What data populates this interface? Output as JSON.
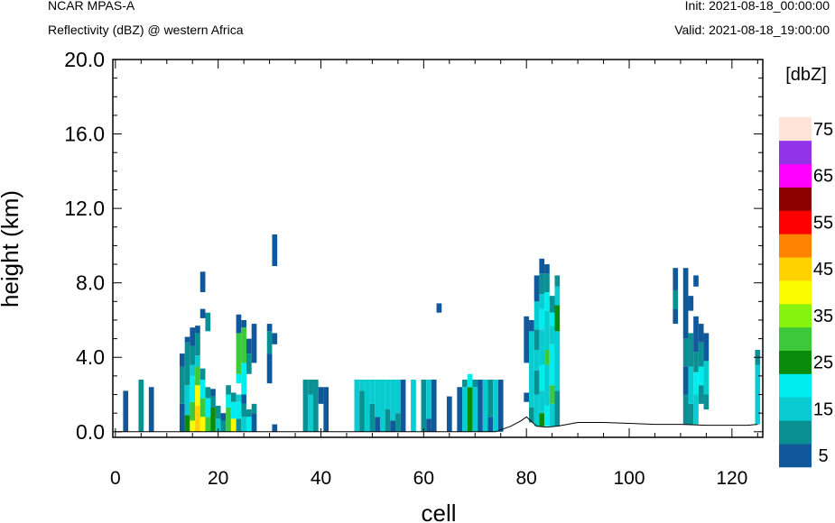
{
  "header": {
    "model": "NCAR MPAS-A",
    "field": "Reflectivity (dBZ) @ western Africa",
    "init": "Init: 2021-08-18_00:00:00",
    "valid": "Valid: 2021-08-18_19:00:00"
  },
  "chart_data": {
    "type": "heatmap",
    "title": "Reflectivity (dBZ) @ western Africa",
    "xlabel": "cell",
    "ylabel": "height (km)",
    "xlim": [
      -0.5,
      126
    ],
    "ylim": [
      -0.3,
      20.0
    ],
    "x_ticks": [
      0,
      20,
      40,
      60,
      80,
      100,
      120
    ],
    "y_ticks": [
      0.0,
      4.0,
      8.0,
      12.0,
      16.0,
      20.0
    ],
    "y_tick_labels": [
      "0.0",
      "4.0",
      "8.0",
      "12.0",
      "16.0",
      "20.0"
    ],
    "colorbar": {
      "unit": "[dbZ]",
      "levels": [
        5,
        10,
        15,
        20,
        25,
        30,
        35,
        40,
        45,
        50,
        55,
        60,
        65,
        70,
        75,
        80
      ],
      "labels": [
        5,
        15,
        25,
        35,
        45,
        55,
        65,
        75
      ],
      "colors": [
        "#11589b",
        "#0a9093",
        "#08ccd0",
        "#00ecee",
        "#0a8b0a",
        "#3cca3c",
        "#86f20e",
        "#fcfc00",
        "#ffd200",
        "#ff8200",
        "#ff0000",
        "#8c0000",
        "#ff00ff",
        "#9133e8",
        "#ffe2d8"
      ]
    },
    "terrain_height_km": [
      [
        0,
        0
      ],
      [
        74,
        0
      ],
      [
        77,
        0.3
      ],
      [
        79,
        0.6
      ],
      [
        80,
        0.8
      ],
      [
        81,
        0.55
      ],
      [
        82,
        0.3
      ],
      [
        84,
        0.25
      ],
      [
        86,
        0.3
      ],
      [
        88,
        0.4
      ],
      [
        90,
        0.5
      ],
      [
        95,
        0.5
      ],
      [
        100,
        0.45
      ],
      [
        105,
        0.4
      ],
      [
        110,
        0.4
      ],
      [
        115,
        0.35
      ],
      [
        120,
        0.35
      ],
      [
        123,
        0.35
      ],
      [
        125,
        0.4
      ]
    ],
    "columns": [
      {
        "x": 2,
        "segs": [
          [
            0,
            2.2,
            5
          ]
        ]
      },
      {
        "x": 5,
        "segs": [
          [
            0,
            2.8,
            10
          ]
        ]
      },
      {
        "x": 7,
        "segs": [
          [
            0,
            2.4,
            5
          ]
        ]
      },
      {
        "x": 13,
        "segs": [
          [
            0,
            1.5,
            5
          ],
          [
            1.5,
            3.5,
            10
          ],
          [
            3.5,
            4.2,
            5
          ]
        ]
      },
      {
        "x": 14,
        "segs": [
          [
            0,
            0.9,
            25
          ],
          [
            0.9,
            2.5,
            15
          ],
          [
            2.5,
            4.8,
            10
          ],
          [
            4.8,
            5.1,
            5
          ]
        ]
      },
      {
        "x": 15,
        "segs": [
          [
            0,
            0.6,
            40
          ],
          [
            0.6,
            1.6,
            30
          ],
          [
            1.6,
            3.0,
            20
          ],
          [
            3.0,
            3.6,
            15
          ],
          [
            3.6,
            4.6,
            10
          ],
          [
            4.6,
            5.6,
            5
          ]
        ]
      },
      {
        "x": 16,
        "segs": [
          [
            0,
            1.4,
            45
          ],
          [
            1.4,
            2.5,
            40
          ],
          [
            2.5,
            3.5,
            30
          ],
          [
            3.5,
            4.1,
            15
          ],
          [
            4.1,
            5.3,
            10
          ],
          [
            5.3,
            5.7,
            5
          ]
        ]
      },
      {
        "x": 17,
        "segs": [
          [
            0,
            0.8,
            40
          ],
          [
            0.8,
            1.8,
            30
          ],
          [
            1.8,
            2.8,
            20
          ],
          [
            2.8,
            3.4,
            10
          ],
          [
            6.1,
            6.6,
            5
          ],
          [
            7.5,
            8.6,
            5
          ]
        ]
      },
      {
        "x": 18,
        "segs": [
          [
            0,
            0.8,
            30
          ],
          [
            0.8,
            1.8,
            20
          ],
          [
            1.8,
            2.4,
            10
          ],
          [
            5.4,
            6.4,
            10
          ]
        ]
      },
      {
        "x": 19,
        "segs": [
          [
            0,
            1.3,
            25
          ],
          [
            1.3,
            1.9,
            10
          ],
          [
            1.9,
            2.3,
            5
          ]
        ]
      },
      {
        "x": 20,
        "segs": [
          [
            0,
            0.7,
            15
          ],
          [
            0.7,
            1.4,
            10
          ]
        ]
      },
      {
        "x": 21,
        "segs": [
          [
            0,
            0.6,
            10
          ],
          [
            0.6,
            1.0,
            5
          ]
        ]
      },
      {
        "x": 22,
        "segs": [
          [
            0,
            1.3,
            30
          ],
          [
            1.3,
            2.0,
            20
          ],
          [
            2.0,
            2.5,
            10
          ]
        ]
      },
      {
        "x": 23,
        "segs": [
          [
            0,
            0.7,
            40
          ],
          [
            0.7,
            1.6,
            20
          ],
          [
            1.6,
            2.1,
            10
          ]
        ]
      },
      {
        "x": 24,
        "segs": [
          [
            0,
            0.7,
            10
          ],
          [
            0.7,
            1.6,
            20
          ],
          [
            1.6,
            2.0,
            15
          ],
          [
            2.6,
            3.1,
            20
          ],
          [
            3.1,
            5.3,
            30
          ],
          [
            5.3,
            6.3,
            5
          ]
        ]
      },
      {
        "x": 25,
        "segs": [
          [
            0,
            0.8,
            15
          ],
          [
            0.8,
            1.5,
            10
          ],
          [
            1.5,
            2.0,
            5
          ],
          [
            2.0,
            3.7,
            20
          ],
          [
            3.7,
            5.6,
            30
          ],
          [
            5.6,
            6.0,
            5
          ]
        ]
      },
      {
        "x": 26,
        "segs": [
          [
            0,
            0.8,
            20
          ],
          [
            0.8,
            1.2,
            10
          ],
          [
            3.1,
            4.2,
            10
          ],
          [
            4.2,
            5.0,
            5
          ]
        ]
      },
      {
        "x": 27,
        "segs": [
          [
            0,
            1.0,
            5
          ],
          [
            1.0,
            1.5,
            10
          ],
          [
            3.7,
            5.8,
            5
          ]
        ]
      },
      {
        "x": 30,
        "segs": [
          [
            2.6,
            4.2,
            5
          ],
          [
            4.2,
            5.4,
            10
          ],
          [
            5.4,
            5.8,
            5
          ]
        ]
      },
      {
        "x": 31,
        "segs": [
          [
            0,
            0.4,
            5
          ],
          [
            4.7,
            5.3,
            5
          ],
          [
            8.9,
            10.6,
            5
          ]
        ]
      },
      {
        "x": 37,
        "segs": [
          [
            0,
            2.8,
            10
          ]
        ]
      },
      {
        "x": 38,
        "segs": [
          [
            0,
            2.0,
            15
          ],
          [
            2.0,
            2.8,
            10
          ]
        ]
      },
      {
        "x": 39,
        "segs": [
          [
            0,
            2.8,
            10
          ]
        ]
      },
      {
        "x": 40,
        "segs": [
          [
            1.5,
            2.4,
            5
          ]
        ]
      },
      {
        "x": 41,
        "segs": [
          [
            0,
            2.4,
            5
          ]
        ]
      },
      {
        "x": 47,
        "segs": [
          [
            0,
            2.8,
            15
          ]
        ]
      },
      {
        "x": 48,
        "segs": [
          [
            0,
            2.2,
            10
          ],
          [
            2.2,
            2.8,
            15
          ]
        ]
      },
      {
        "x": 49,
        "segs": [
          [
            0,
            2.8,
            15
          ]
        ]
      },
      {
        "x": 50,
        "segs": [
          [
            0,
            1.5,
            10
          ],
          [
            1.5,
            2.8,
            15
          ]
        ]
      },
      {
        "x": 51,
        "segs": [
          [
            0,
            0.8,
            5
          ],
          [
            0.8,
            2.8,
            15
          ]
        ]
      },
      {
        "x": 52,
        "segs": [
          [
            0,
            2.8,
            15
          ]
        ]
      },
      {
        "x": 53,
        "segs": [
          [
            0,
            1.2,
            10
          ],
          [
            1.2,
            2.8,
            15
          ]
        ]
      },
      {
        "x": 54,
        "segs": [
          [
            0,
            0.6,
            5
          ],
          [
            0.6,
            2.8,
            15
          ]
        ]
      },
      {
        "x": 55,
        "segs": [
          [
            0,
            1.0,
            10
          ],
          [
            1.0,
            2.8,
            15
          ]
        ]
      },
      {
        "x": 56,
        "segs": [
          [
            0,
            2.8,
            5
          ]
        ]
      },
      {
        "x": 58,
        "segs": [
          [
            0,
            2.8,
            15
          ]
        ]
      },
      {
        "x": 60,
        "segs": [
          [
            0,
            2.8,
            10
          ]
        ]
      },
      {
        "x": 61,
        "segs": [
          [
            0,
            0.7,
            5
          ],
          [
            0.7,
            2.8,
            15
          ]
        ]
      },
      {
        "x": 62,
        "segs": [
          [
            0,
            2.8,
            5
          ]
        ]
      },
      {
        "x": 63,
        "segs": [
          [
            6.4,
            6.9,
            5
          ]
        ]
      },
      {
        "x": 65,
        "segs": [
          [
            0,
            1.9,
            5
          ]
        ]
      },
      {
        "x": 67,
        "segs": [
          [
            0,
            2.4,
            5
          ]
        ]
      },
      {
        "x": 68,
        "segs": [
          [
            0,
            2.4,
            15
          ],
          [
            2.4,
            2.8,
            10
          ]
        ]
      },
      {
        "x": 69,
        "segs": [
          [
            0,
            2.4,
            25
          ],
          [
            2.4,
            3.1,
            20
          ]
        ]
      },
      {
        "x": 70,
        "segs": [
          [
            0,
            2.4,
            15
          ],
          [
            2.4,
            2.8,
            10
          ]
        ]
      },
      {
        "x": 71,
        "segs": [
          [
            0,
            2.8,
            5
          ]
        ]
      },
      {
        "x": 72,
        "segs": [
          [
            0,
            2.8,
            15
          ]
        ]
      },
      {
        "x": 73,
        "segs": [
          [
            0,
            0.8,
            5
          ],
          [
            0.8,
            2.8,
            10
          ]
        ]
      },
      {
        "x": 74,
        "segs": [
          [
            0,
            2.8,
            15
          ]
        ]
      },
      {
        "x": 75,
        "segs": [
          [
            0,
            2.8,
            5
          ]
        ]
      },
      {
        "x": 80,
        "segs": [
          [
            1.6,
            2.1,
            5
          ],
          [
            3.7,
            6.2,
            5
          ]
        ]
      },
      {
        "x": 81,
        "segs": [
          [
            0.5,
            1.3,
            10
          ],
          [
            1.3,
            5.4,
            15
          ],
          [
            5.4,
            6.0,
            5
          ]
        ]
      },
      {
        "x": 82,
        "segs": [
          [
            0.3,
            2.0,
            15
          ],
          [
            2.0,
            3.3,
            10
          ],
          [
            3.3,
            4.4,
            15
          ],
          [
            4.4,
            5.5,
            10
          ],
          [
            5.5,
            7.0,
            15
          ],
          [
            7.0,
            8.4,
            5
          ]
        ]
      },
      {
        "x": 83,
        "segs": [
          [
            0.3,
            1.0,
            25
          ],
          [
            1.0,
            2.2,
            15
          ],
          [
            2.2,
            3.6,
            20
          ],
          [
            3.6,
            5.5,
            15
          ],
          [
            5.5,
            6.6,
            20
          ],
          [
            6.6,
            7.4,
            15
          ],
          [
            7.4,
            8.5,
            10
          ],
          [
            8.5,
            9.3,
            5
          ]
        ]
      },
      {
        "x": 84,
        "segs": [
          [
            0.3,
            1.4,
            20
          ],
          [
            1.4,
            2.1,
            15
          ],
          [
            2.1,
            3.6,
            15
          ],
          [
            3.6,
            4.4,
            30
          ],
          [
            4.4,
            6.5,
            15
          ],
          [
            6.5,
            7.5,
            20
          ],
          [
            7.5,
            8.5,
            10
          ],
          [
            8.5,
            9.0,
            5
          ]
        ]
      },
      {
        "x": 85,
        "segs": [
          [
            0.3,
            1.5,
            15
          ],
          [
            1.5,
            2.5,
            30
          ],
          [
            2.5,
            4.7,
            20
          ],
          [
            4.7,
            5.7,
            15
          ],
          [
            5.7,
            6.4,
            20
          ],
          [
            6.4,
            7.3,
            10
          ]
        ]
      },
      {
        "x": 86,
        "segs": [
          [
            0.3,
            2.2,
            10
          ],
          [
            2.2,
            5.4,
            15
          ],
          [
            5.4,
            6.8,
            25
          ],
          [
            6.8,
            7.8,
            15
          ],
          [
            7.8,
            8.4,
            10
          ]
        ]
      },
      {
        "x": 109,
        "segs": [
          [
            5.8,
            6.6,
            5
          ],
          [
            6.6,
            7.6,
            10
          ],
          [
            7.6,
            8.8,
            5
          ]
        ]
      },
      {
        "x": 111,
        "segs": [
          [
            0.4,
            2.0,
            10
          ],
          [
            2.0,
            3.5,
            5
          ],
          [
            3.5,
            5.0,
            10
          ],
          [
            5.0,
            8.8,
            5
          ]
        ]
      },
      {
        "x": 112,
        "segs": [
          [
            0.4,
            1.5,
            10
          ],
          [
            1.5,
            3.5,
            15
          ],
          [
            3.5,
            5.3,
            10
          ],
          [
            6.5,
            7.3,
            5
          ]
        ]
      },
      {
        "x": 113,
        "segs": [
          [
            0.4,
            2.0,
            15
          ],
          [
            2.0,
            3.2,
            20
          ],
          [
            3.2,
            4.3,
            10
          ],
          [
            4.3,
            6.2,
            5
          ],
          [
            7.8,
            8.4,
            5
          ]
        ]
      },
      {
        "x": 114,
        "segs": [
          [
            1.5,
            2.5,
            10
          ],
          [
            2.5,
            3.5,
            20
          ],
          [
            3.5,
            4.8,
            10
          ],
          [
            4.8,
            5.8,
            5
          ]
        ]
      },
      {
        "x": 115,
        "segs": [
          [
            1.2,
            2.0,
            10
          ],
          [
            2.0,
            3.8,
            15
          ],
          [
            3.8,
            5.3,
            5
          ]
        ]
      },
      {
        "x": 125,
        "segs": [
          [
            0.4,
            3.6,
            15
          ],
          [
            3.6,
            4.4,
            10
          ]
        ]
      }
    ]
  }
}
